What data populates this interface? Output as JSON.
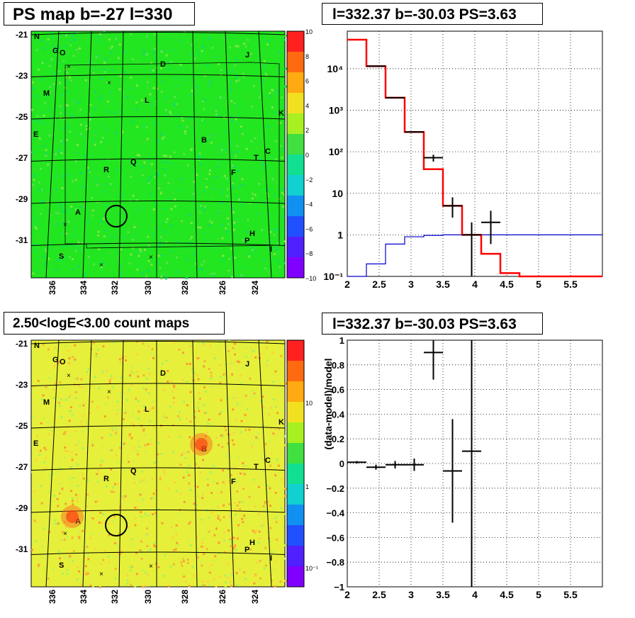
{
  "panels": {
    "map1_title": "PS map b=-27 l=330",
    "spec_title": "l=332.37 b=-30.03 PS=3.63",
    "map2_title": "2.50<logE<3.00 count maps",
    "resid_title": "l=332.37 b=-30.03 PS=3.63"
  },
  "colors": {
    "map1_fill": "#22e620",
    "map2_fill": "#e6f03a",
    "model_line": "#ff0000",
    "bkg_line": "#0000cc",
    "data": "#000000"
  },
  "maps": {
    "x_ticks": [
      "336",
      "334",
      "332",
      "330",
      "328",
      "326",
      "324"
    ],
    "y_ticks": [
      "-21",
      "-23",
      "-25",
      "-27",
      "-29",
      "-31"
    ],
    "sources": [
      "G",
      "O",
      "J",
      "D",
      "M",
      "L",
      "K",
      "E",
      "B",
      "T",
      "C",
      "R",
      "Q",
      "F",
      "A",
      "H",
      "P",
      "I",
      "S",
      "N"
    ],
    "map1_colorbar_ticks": [
      "10",
      "8",
      "6",
      "4",
      "2",
      "0",
      "−2",
      "−4",
      "−6",
      "−8",
      "−10"
    ],
    "map2_colorbar_ticks": [
      "10",
      "1",
      "10⁻¹"
    ]
  },
  "chart_data": [
    {
      "type": "histogram",
      "panel": "spectrum",
      "title": "l=332.37 b=-30.03 PS=3.63",
      "xlabel": "",
      "ylabel": "",
      "xlim": [
        2,
        6
      ],
      "ylim": [
        0.1,
        80000
      ],
      "yscale": "log",
      "grid": true,
      "x_ticks": [
        "2",
        "2.5",
        "3",
        "3.5",
        "4",
        "4.5",
        "5",
        "5.5"
      ],
      "y_ticks": [
        "10⁴",
        "10³",
        "10²",
        "10",
        "1",
        "10⁻¹"
      ],
      "bin_edges": [
        2.0,
        2.3,
        2.6,
        2.9,
        3.2,
        3.5,
        3.8,
        4.1,
        4.4,
        4.7,
        5.0,
        5.3,
        5.6,
        5.9,
        6.0
      ],
      "series": [
        {
          "kind": "model",
          "values": [
            50000,
            11500,
            2000,
            300,
            38,
            5,
            1,
            0.35,
            0.12,
            0.1,
            0.1,
            0.1,
            0.1,
            0.1
          ]
        },
        {
          "kind": "background",
          "values": [
            0.1,
            0.2,
            0.6,
            0.9,
            0.97,
            1,
            1,
            1,
            1,
            1,
            1,
            1,
            1,
            1
          ]
        }
      ],
      "data_points": [
        {
          "x": 2.45,
          "y": 11500,
          "xerr": 0.15,
          "ylo": 11300,
          "yhi": 11800
        },
        {
          "x": 2.75,
          "y": 2000,
          "xerr": 0.15,
          "ylo": 1960,
          "yhi": 2040
        },
        {
          "x": 3.05,
          "y": 300,
          "xerr": 0.15,
          "ylo": 288,
          "yhi": 312
        },
        {
          "x": 3.35,
          "y": 72,
          "xerr": 0.15,
          "ylo": 58,
          "yhi": 85
        },
        {
          "x": 3.65,
          "y": 5,
          "xerr": 0.15,
          "ylo": 2.6,
          "yhi": 8
        },
        {
          "x": 3.95,
          "y": 1,
          "xerr": 0.15,
          "ylo": 0.1,
          "yhi": 2
        },
        {
          "x": 4.25,
          "y": 2,
          "xerr": 0.15,
          "ylo": 0.6,
          "yhi": 3.8
        }
      ]
    },
    {
      "type": "scatter",
      "panel": "residual",
      "title": "l=332.37 b=-30.03 PS=3.63",
      "xlabel": "",
      "ylabel": "(data-model)/model",
      "xlim": [
        2,
        6
      ],
      "ylim": [
        -1,
        1
      ],
      "grid": true,
      "x_ticks": [
        "2",
        "2.5",
        "3",
        "3.5",
        "4",
        "4.5",
        "5",
        "5.5"
      ],
      "y_ticks": [
        "1",
        "0.8",
        "0.6",
        "0.4",
        "0.2",
        "0",
        "−0.2",
        "−0.4",
        "−0.6",
        "−0.8",
        "−1"
      ],
      "data_points": [
        {
          "x": 2.15,
          "y": 0.01,
          "xerr": 0.15,
          "yerr": 0.01
        },
        {
          "x": 2.45,
          "y": -0.03,
          "xerr": 0.15,
          "yerr": 0.02
        },
        {
          "x": 2.75,
          "y": -0.01,
          "xerr": 0.15,
          "yerr": 0.03
        },
        {
          "x": 3.05,
          "y": -0.01,
          "xerr": 0.15,
          "yerr": 0.05
        },
        {
          "x": 3.35,
          "y": 0.9,
          "xerr": 0.15,
          "yerr": 0.22
        },
        {
          "x": 3.65,
          "y": -0.06,
          "xerr": 0.15,
          "yerr": 0.42
        },
        {
          "x": 3.95,
          "y": 0.1,
          "xerr": 0.15,
          "yerr": 1.2
        }
      ]
    }
  ]
}
